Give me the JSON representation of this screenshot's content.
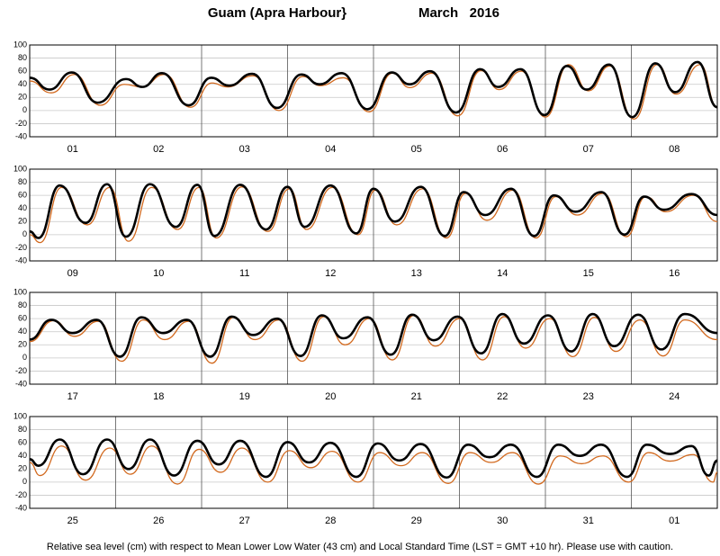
{
  "title": "Guam (Apra Harbour}",
  "date": "March   2016",
  "note": "Relative sea level (cm) with respect to Mean Lower Low Water (43 cm) and Local Standard Time (LST = GMT +10 hr). Please use with caution.",
  "chart_data": [
    {
      "type": "line",
      "categories": [
        "01",
        "02",
        "03",
        "04",
        "05",
        "06",
        "07",
        "08"
      ],
      "xlim": [
        0,
        8
      ],
      "xticks": [
        1,
        2,
        3,
        4,
        5,
        6,
        7
      ],
      "ylim": [
        -40,
        100
      ],
      "yticks": [
        -40,
        -20,
        0,
        20,
        40,
        60,
        80,
        100
      ],
      "grid": true,
      "series": [
        {
          "color": "#000000",
          "x": [
            0,
            0.23,
            0.49,
            0.79,
            1.12,
            1.31,
            1.54,
            1.85,
            2.11,
            2.32,
            2.59,
            2.88,
            3.16,
            3.37,
            3.63,
            3.93,
            4.21,
            4.42,
            4.66,
            4.96,
            5.24,
            5.45,
            5.71,
            5.99,
            6.25,
            6.48,
            6.74,
            7.01,
            7.28,
            7.51,
            7.77,
            8
          ],
          "values": [
            50,
            32,
            58,
            12,
            48,
            36,
            57,
            8,
            50,
            38,
            56,
            4,
            55,
            40,
            57,
            2,
            58,
            40,
            60,
            -3,
            63,
            36,
            63,
            -7,
            68,
            32,
            70,
            -10,
            72,
            28,
            74,
            5
          ]
        },
        {
          "color": "#d2691e",
          "x": [
            0,
            0.25,
            0.52,
            0.82,
            1.1,
            1.3,
            1.57,
            1.87,
            2.12,
            2.3,
            2.6,
            2.9,
            3.18,
            3.38,
            3.65,
            3.95,
            4.22,
            4.42,
            4.68,
            4.98,
            5.25,
            5.46,
            5.72,
            6.0,
            6.27,
            6.5,
            6.75,
            7.03,
            7.3,
            7.52,
            7.8,
            8
          ],
          "values": [
            45,
            27,
            55,
            8,
            40,
            36,
            55,
            5,
            42,
            36,
            53,
            0,
            52,
            38,
            50,
            -2,
            57,
            35,
            57,
            -8,
            61,
            32,
            60,
            -10,
            70,
            30,
            68,
            -13,
            70,
            25,
            70,
            5
          ]
        }
      ]
    },
    {
      "type": "line",
      "categories": [
        "09",
        "10",
        "11",
        "12",
        "13",
        "14",
        "15",
        "16"
      ],
      "xlim": [
        0,
        8
      ],
      "xticks": [
        1,
        2,
        3,
        4,
        5,
        6,
        7
      ],
      "ylim": [
        -40,
        100
      ],
      "yticks": [
        -40,
        -20,
        0,
        20,
        40,
        60,
        80,
        100
      ],
      "grid": true,
      "series": [
        {
          "color": "#000000",
          "x": [
            0,
            0.1,
            0.35,
            0.65,
            0.9,
            1.12,
            1.4,
            1.7,
            1.95,
            2.15,
            2.45,
            2.75,
            3.0,
            3.2,
            3.5,
            3.8,
            4.0,
            4.25,
            4.55,
            4.83,
            5.05,
            5.3,
            5.6,
            5.87,
            6.1,
            6.35,
            6.65,
            6.92,
            7.15,
            7.38,
            7.7,
            8
          ],
          "values": [
            5,
            -5,
            75,
            18,
            77,
            -3,
            77,
            12,
            76,
            -2,
            76,
            8,
            73,
            12,
            75,
            2,
            70,
            20,
            73,
            -2,
            65,
            30,
            70,
            -2,
            60,
            35,
            65,
            0,
            58,
            38,
            62,
            30
          ]
        },
        {
          "color": "#d2691e",
          "x": [
            0,
            0.12,
            0.37,
            0.67,
            0.93,
            1.15,
            1.42,
            1.72,
            1.97,
            2.17,
            2.47,
            2.77,
            3.02,
            3.22,
            3.52,
            3.82,
            4.02,
            4.27,
            4.57,
            4.85,
            5.07,
            5.32,
            5.62,
            5.89,
            6.12,
            6.37,
            6.67,
            6.94,
            7.17,
            7.4,
            7.72,
            8
          ],
          "values": [
            0,
            -12,
            72,
            15,
            72,
            -10,
            72,
            8,
            72,
            -5,
            73,
            5,
            70,
            8,
            72,
            0,
            68,
            15,
            70,
            -5,
            63,
            22,
            68,
            -5,
            58,
            30,
            63,
            -3,
            58,
            35,
            60,
            20
          ]
        }
      ]
    },
    {
      "type": "line",
      "categories": [
        "17",
        "18",
        "19",
        "20",
        "21",
        "22",
        "23",
        "24"
      ],
      "xlim": [
        0,
        8
      ],
      "xticks": [
        1,
        2,
        3,
        4,
        5,
        6,
        7
      ],
      "ylim": [
        -40,
        100
      ],
      "yticks": [
        -40,
        -20,
        0,
        20,
        40,
        60,
        80,
        100
      ],
      "grid": true,
      "series": [
        {
          "color": "#000000",
          "x": [
            0,
            0.25,
            0.5,
            0.78,
            1.05,
            1.3,
            1.55,
            1.83,
            2.1,
            2.35,
            2.6,
            2.88,
            3.15,
            3.4,
            3.65,
            3.93,
            4.2,
            4.45,
            4.7,
            4.98,
            5.25,
            5.5,
            5.75,
            6.03,
            6.3,
            6.55,
            6.8,
            7.08,
            7.35,
            7.62,
            8
          ],
          "values": [
            28,
            58,
            38,
            58,
            2,
            62,
            38,
            58,
            2,
            63,
            35,
            60,
            3,
            65,
            30,
            62,
            5,
            66,
            27,
            63,
            7,
            67,
            22,
            65,
            10,
            67,
            18,
            66,
            13,
            67,
            38
          ]
        },
        {
          "color": "#d2691e",
          "x": [
            0,
            0.28,
            0.52,
            0.8,
            1.07,
            1.32,
            1.57,
            1.85,
            2.12,
            2.37,
            2.62,
            2.9,
            3.17,
            3.42,
            3.67,
            3.95,
            4.22,
            4.47,
            4.72,
            5.0,
            5.27,
            5.52,
            5.77,
            6.05,
            6.32,
            6.57,
            6.82,
            7.1,
            7.37,
            7.62,
            8
          ],
          "values": [
            25,
            57,
            33,
            56,
            -5,
            58,
            28,
            56,
            -8,
            62,
            28,
            58,
            -5,
            63,
            20,
            60,
            -3,
            65,
            18,
            60,
            -3,
            63,
            15,
            60,
            2,
            62,
            10,
            58,
            3,
            58,
            28
          ]
        }
      ]
    },
    {
      "type": "line",
      "categories": [
        "25",
        "26",
        "27",
        "28",
        "29",
        "30",
        "31",
        "01"
      ],
      "xlim": [
        0,
        8
      ],
      "xticks": [
        1,
        2,
        3,
        4,
        5,
        6,
        7
      ],
      "ylim": [
        -40,
        100
      ],
      "yticks": [
        -40,
        -20,
        0,
        20,
        40,
        60,
        80,
        100
      ],
      "grid": true,
      "series": [
        {
          "color": "#000000",
          "x": [
            0,
            0.1,
            0.35,
            0.62,
            0.9,
            1.15,
            1.4,
            1.68,
            1.95,
            2.2,
            2.45,
            2.75,
            3.0,
            3.25,
            3.5,
            3.8,
            4.05,
            4.3,
            4.55,
            4.85,
            5.1,
            5.35,
            5.6,
            5.9,
            6.15,
            6.4,
            6.65,
            6.95,
            7.18,
            7.45,
            7.7,
            7.9,
            8
          ],
          "values": [
            35,
            25,
            65,
            12,
            65,
            20,
            65,
            10,
            63,
            27,
            63,
            8,
            61,
            30,
            60,
            8,
            59,
            33,
            58,
            7,
            57,
            38,
            57,
            8,
            57,
            40,
            57,
            8,
            57,
            43,
            55,
            10,
            33
          ]
        },
        {
          "color": "#d2691e",
          "x": [
            0,
            0.12,
            0.37,
            0.65,
            0.93,
            1.17,
            1.42,
            1.72,
            1.97,
            2.22,
            2.47,
            2.77,
            3.02,
            3.27,
            3.52,
            3.82,
            4.07,
            4.32,
            4.57,
            4.87,
            5.12,
            5.37,
            5.62,
            5.92,
            6.17,
            6.42,
            6.67,
            6.97,
            7.2,
            7.45,
            7.72,
            7.95,
            8
          ],
          "values": [
            30,
            10,
            55,
            3,
            52,
            12,
            55,
            -3,
            50,
            15,
            52,
            0,
            48,
            22,
            47,
            0,
            45,
            25,
            45,
            -2,
            45,
            30,
            45,
            -3,
            40,
            28,
            40,
            0,
            45,
            32,
            42,
            0,
            15
          ]
        }
      ]
    }
  ]
}
